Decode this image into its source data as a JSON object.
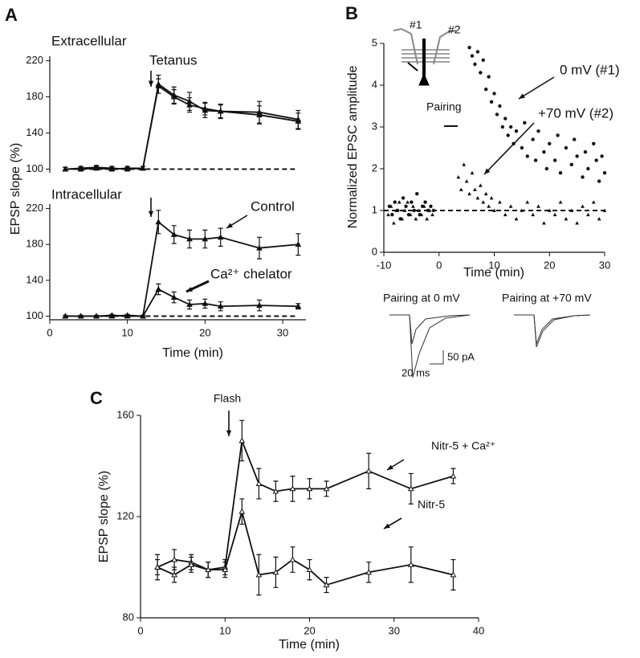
{
  "chart_data": [
    {
      "type": "line",
      "panel_label": "A",
      "title": "Extracellular",
      "annotations": [
        "Tetanus"
      ],
      "x": [
        2,
        4,
        6,
        8,
        10,
        12,
        14,
        16,
        18,
        20,
        22,
        27,
        32
      ],
      "series": [
        {
          "color": "#111111",
          "values": [
            100,
            100,
            101,
            100,
            101,
            101,
            194,
            182,
            175,
            165,
            164,
            163,
            155
          ],
          "errors": [
            2,
            2,
            2,
            2,
            2,
            2,
            10,
            9,
            10,
            8,
            8,
            12,
            10
          ]
        },
        {
          "color": "#111111",
          "values": [
            100,
            101,
            102,
            101,
            100,
            101,
            192,
            180,
            171,
            167,
            164,
            160,
            153
          ],
          "errors": [
            2,
            2,
            2,
            2,
            2,
            2,
            8,
            8,
            8,
            7,
            7,
            10,
            9
          ]
        }
      ],
      "baseline": 100,
      "xlim": [
        0,
        33
      ],
      "ylim": [
        96,
        225
      ],
      "yticks": [
        100,
        140,
        180,
        220
      ]
    },
    {
      "type": "line",
      "title": "Intracellular",
      "annotations": [
        "Control",
        "Ca²⁺ chelator"
      ],
      "x": [
        2,
        4,
        6,
        8,
        10,
        12,
        14,
        16,
        18,
        20,
        22,
        27,
        32
      ],
      "series": [
        {
          "color": "#111111",
          "values": [
            100,
            100,
            100,
            101,
            100,
            100,
            205,
            191,
            186,
            186,
            188,
            176,
            180
          ],
          "errors": [
            1,
            1,
            1,
            1,
            1,
            1,
            13,
            10,
            10,
            10,
            10,
            12,
            12
          ]
        },
        {
          "color": "#111111",
          "values": [
            100,
            100,
            100,
            100,
            101,
            100,
            130,
            121,
            113,
            114,
            111,
            112,
            111
          ],
          "errors": [
            1,
            1,
            1,
            1,
            1,
            1,
            6,
            6,
            5,
            5,
            5,
            6,
            3
          ]
        }
      ],
      "baseline": 100,
      "xlim": [
        0,
        33
      ],
      "ylim": [
        96,
        225
      ],
      "xticks": [
        0,
        10,
        20,
        30
      ],
      "yticks": [
        100,
        140,
        180,
        220
      ],
      "xlabel": "Time (min)",
      "ylabel": "EPSP slope (%)"
    },
    {
      "type": "scatter",
      "panel_label": "B",
      "annotations": [
        "Pairing",
        "#1",
        "#2"
      ],
      "trace_labels": [
        "Pairing at 0 mV",
        "Pairing at +70 mV"
      ],
      "scale_labels": [
        "50 pA",
        "20 ms"
      ],
      "series": [
        {
          "name": "0 mV (#1)",
          "marker": "circle",
          "color": "#111111",
          "x": [
            -9,
            -8.5,
            -8,
            -7.5,
            -7,
            -6.5,
            -6,
            -5.5,
            -5,
            -4.5,
            -4,
            -3.5,
            -3,
            -2.5,
            -2,
            -1.5,
            -1,
            5.5,
            6,
            6.5,
            7,
            7.5,
            8,
            8.5,
            9,
            9.5,
            10,
            10.5,
            11,
            11.5,
            12,
            12.5,
            13,
            13.5,
            14,
            15,
            15.5,
            16,
            17,
            17.5,
            18,
            19,
            19.5,
            20,
            21,
            21.5,
            22,
            23,
            24,
            24.5,
            25,
            26,
            26.5,
            27,
            28,
            28.5,
            29,
            29.5,
            30
          ],
          "values": [
            1.1,
            0.9,
            1.2,
            1.0,
            0.8,
            1.3,
            1.1,
            0.9,
            1.2,
            1.0,
            1.4,
            0.9,
            1.1,
            1.2,
            1.0,
            1.1,
            1.0,
            4.9,
            4.7,
            4.5,
            4.8,
            4.3,
            4.6,
            3.9,
            4.2,
            3.6,
            3.8,
            3.3,
            3.5,
            3.0,
            3.2,
            2.8,
            3.0,
            2.6,
            2.9,
            2.5,
            3.1,
            2.3,
            2.7,
            2.2,
            2.9,
            2.4,
            2.0,
            2.6,
            2.2,
            2.8,
            1.9,
            2.5,
            2.1,
            2.7,
            2.3,
            1.8,
            2.4,
            2.0,
            2.6,
            2.2,
            1.7,
            2.3,
            1.9
          ]
        },
        {
          "name": "+70 mV (#2)",
          "marker": "triangle",
          "color": "#111111",
          "x": [
            -9.2,
            -8.7,
            -8.2,
            -7.7,
            -7.2,
            -6.7,
            -6.2,
            -5.7,
            -5.2,
            -4.7,
            -4.2,
            -3.7,
            -3.2,
            -2.7,
            -2.2,
            -1.7,
            -1.2,
            3.5,
            4,
            4.5,
            5,
            5.5,
            6,
            6.5,
            7,
            7.5,
            8,
            8.5,
            9,
            9.5,
            10,
            11,
            12,
            13,
            14,
            15,
            16,
            17,
            18,
            19,
            20,
            21,
            22,
            23,
            24,
            25,
            26,
            27,
            28,
            29,
            30
          ],
          "values": [
            0.9,
            1.1,
            0.7,
            1.0,
            1.2,
            0.8,
            1.0,
            1.2,
            0.9,
            1.1,
            0.8,
            1.0,
            0.9,
            1.1,
            0.8,
            1.0,
            0.9,
            1.8,
            1.5,
            2.1,
            1.7,
            1.4,
            1.9,
            1.5,
            1.3,
            1.6,
            1.2,
            1.4,
            1.1,
            1.3,
            1.0,
            1.2,
            0.9,
            1.1,
            0.8,
            1.0,
            1.2,
            0.9,
            1.1,
            0.7,
            1.0,
            0.9,
            1.2,
            0.8,
            1.0,
            0.7,
            1.1,
            0.9,
            1.2,
            0.8,
            1.0
          ]
        }
      ],
      "baseline": 1,
      "xlim": [
        -10,
        30
      ],
      "ylim": [
        0,
        5
      ],
      "xticks": [
        -10,
        0,
        10,
        20,
        30
      ],
      "yticks": [
        0,
        1,
        2,
        3,
        4,
        5
      ],
      "xlabel": "Time (min)",
      "ylabel": "Normalized EPSC amplitude"
    },
    {
      "type": "line",
      "panel_label": "C",
      "annotations": [
        "Flash"
      ],
      "x": [
        2,
        4,
        6,
        8,
        10,
        12,
        14,
        16,
        18,
        20,
        22,
        27,
        32,
        37
      ],
      "series": [
        {
          "name": "Nitr-5 + Ca²⁺",
          "color": "#111111",
          "values": [
            100,
            103,
            102,
            99,
            100,
            150,
            133,
            130,
            131,
            131,
            131,
            138,
            131,
            136
          ],
          "errors": [
            5,
            4,
            3,
            3,
            3,
            8,
            6,
            4,
            5,
            4,
            3,
            7,
            6,
            3
          ]
        },
        {
          "name": "Nitr-5",
          "color": "#111111",
          "values": [
            100,
            97,
            101,
            99,
            99,
            122,
            97,
            98,
            103,
            99,
            93,
            98,
            101,
            97
          ],
          "errors": [
            3,
            3,
            3,
            3,
            3,
            5,
            8,
            6,
            5,
            4,
            3,
            4,
            7,
            6
          ]
        }
      ],
      "xlim": [
        0,
        40
      ],
      "ylim": [
        80,
        160
      ],
      "xticks": [
        0,
        10,
        20,
        30,
        40
      ],
      "yticks": [
        80,
        120,
        160
      ],
      "xlabel": "Time (min)",
      "ylabel": "EPSP slope (%)"
    }
  ]
}
